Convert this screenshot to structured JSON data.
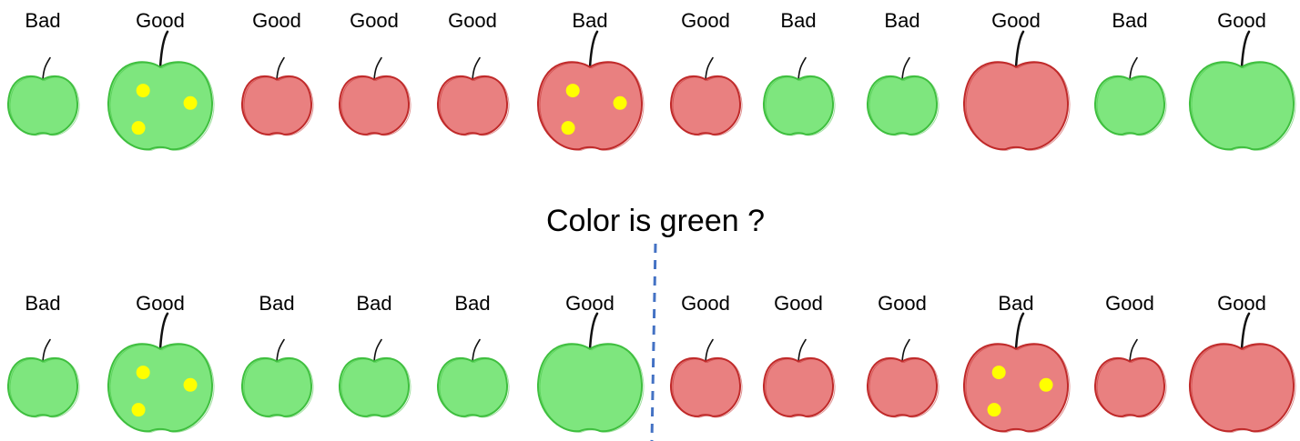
{
  "question": "Color is green ?",
  "colors": {
    "green_fill": "#7ee67e",
    "green_stroke": "#3fbf3f",
    "red_fill": "#e98080",
    "red_stroke": "#c02a2a",
    "spot": "#ffff00",
    "divider": "#4472c4"
  },
  "rows": [
    {
      "name": "top-row",
      "apples": [
        {
          "label": "Bad",
          "color": "green",
          "size": "small",
          "spots": false
        },
        {
          "label": "Good",
          "color": "green",
          "size": "large",
          "spots": true
        },
        {
          "label": "Good",
          "color": "red",
          "size": "small",
          "spots": false
        },
        {
          "label": "Good",
          "color": "red",
          "size": "small",
          "spots": false
        },
        {
          "label": "Good",
          "color": "red",
          "size": "small",
          "spots": false
        },
        {
          "label": "Bad",
          "color": "red",
          "size": "large",
          "spots": true
        },
        {
          "label": "Good",
          "color": "red",
          "size": "small",
          "spots": false
        },
        {
          "label": "Bad",
          "color": "green",
          "size": "small",
          "spots": false
        },
        {
          "label": "Bad",
          "color": "green",
          "size": "small",
          "spots": false
        },
        {
          "label": "Good",
          "color": "red",
          "size": "large",
          "spots": false
        },
        {
          "label": "Bad",
          "color": "green",
          "size": "small",
          "spots": false
        },
        {
          "label": "Good",
          "color": "green",
          "size": "large",
          "spots": false
        }
      ]
    },
    {
      "name": "bottom-row",
      "apples": [
        {
          "label": "Bad",
          "color": "green",
          "size": "small",
          "spots": false
        },
        {
          "label": "Good",
          "color": "green",
          "size": "large",
          "spots": true
        },
        {
          "label": "Bad",
          "color": "green",
          "size": "small",
          "spots": false
        },
        {
          "label": "Bad",
          "color": "green",
          "size": "small",
          "spots": false
        },
        {
          "label": "Bad",
          "color": "green",
          "size": "small",
          "spots": false
        },
        {
          "label": "Good",
          "color": "green",
          "size": "large",
          "spots": false
        },
        {
          "label": "Good",
          "color": "red",
          "size": "small",
          "spots": false
        },
        {
          "label": "Good",
          "color": "red",
          "size": "small",
          "spots": false
        },
        {
          "label": "Good",
          "color": "red",
          "size": "small",
          "spots": false
        },
        {
          "label": "Bad",
          "color": "red",
          "size": "large",
          "spots": true
        },
        {
          "label": "Good",
          "color": "red",
          "size": "small",
          "spots": false
        },
        {
          "label": "Good",
          "color": "red",
          "size": "large",
          "spots": false
        }
      ]
    }
  ]
}
